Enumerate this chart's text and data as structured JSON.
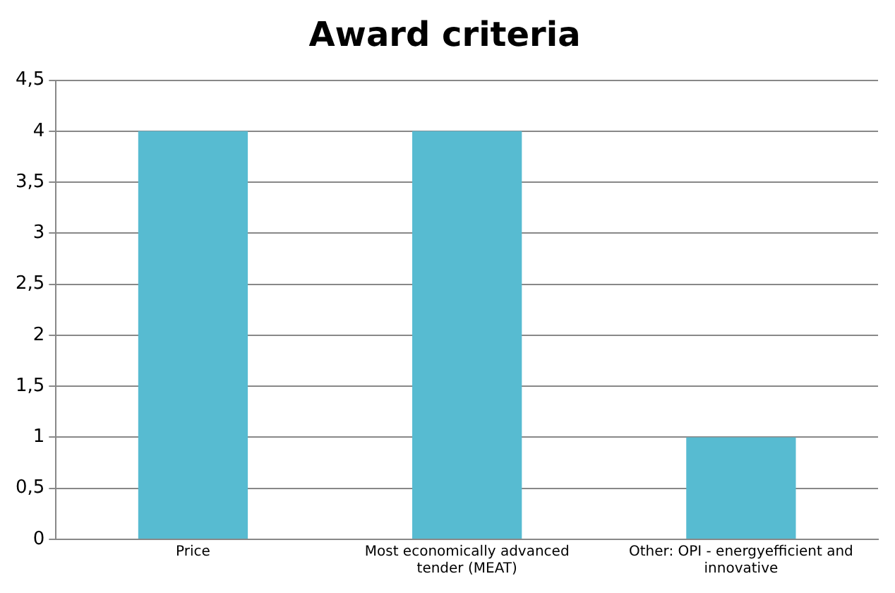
{
  "chart_data": {
    "type": "bar",
    "title": "Award criteria",
    "categories": [
      "Price",
      "Most economically advanced tender (MEAT)",
      "Other: OPI - energyefficient and innovative"
    ],
    "values": [
      4,
      4,
      1
    ],
    "color": "#57bbd1",
    "ylim": [
      0,
      4.5
    ],
    "yticks": [
      0,
      {
        "value": 0.5,
        "label": "0,5"
      },
      1,
      {
        "value": 1.5,
        "label": "1,5"
      },
      2,
      {
        "value": 2.5,
        "label": "2,5"
      },
      3,
      {
        "value": 3.5,
        "label": "3,5"
      },
      4,
      {
        "value": 4.5,
        "label": "4,5"
      }
    ],
    "grid": "y",
    "legend": false
  }
}
